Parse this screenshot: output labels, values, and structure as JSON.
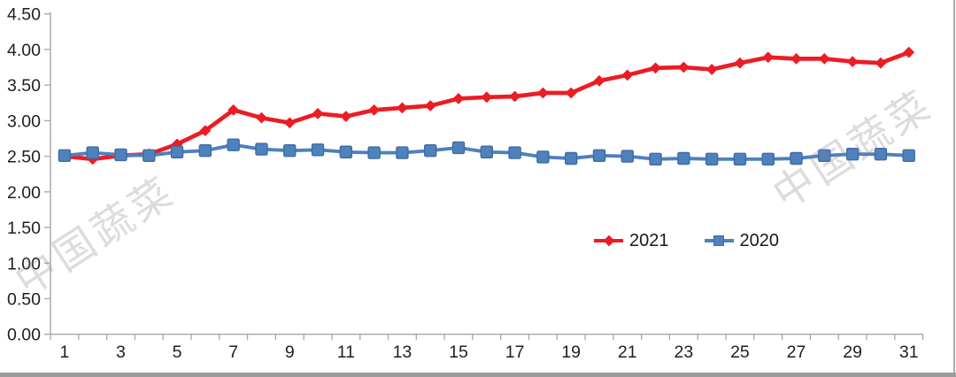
{
  "chart_data": {
    "type": "line",
    "x": [
      1,
      2,
      3,
      4,
      5,
      6,
      7,
      8,
      9,
      10,
      11,
      12,
      13,
      14,
      15,
      16,
      17,
      18,
      19,
      20,
      21,
      22,
      23,
      24,
      25,
      26,
      27,
      28,
      29,
      30,
      31
    ],
    "x_tick_labels": [
      "1",
      "3",
      "5",
      "7",
      "9",
      "11",
      "13",
      "15",
      "17",
      "19",
      "21",
      "23",
      "25",
      "27",
      "29",
      "31"
    ],
    "y_tick_labels": [
      "0.00",
      "0.50",
      "1.00",
      "1.50",
      "2.00",
      "2.50",
      "3.00",
      "3.50",
      "4.00",
      "4.50"
    ],
    "ylim": [
      0,
      4.5
    ],
    "y_step": 0.5,
    "grid": false,
    "legend_position": "inside-bottom-center",
    "title": "",
    "xlabel": "",
    "ylabel": "",
    "series": [
      {
        "name": "2021",
        "color": "#ec1c24",
        "marker": "diamond",
        "values": [
          2.5,
          2.46,
          2.51,
          2.53,
          2.67,
          2.86,
          3.15,
          3.04,
          2.97,
          3.1,
          3.06,
          3.15,
          3.18,
          3.21,
          3.31,
          3.33,
          3.34,
          3.39,
          3.39,
          3.56,
          3.64,
          3.74,
          3.75,
          3.72,
          3.81,
          3.89,
          3.87,
          3.87,
          3.83,
          3.81,
          3.96
        ]
      },
      {
        "name": "2020",
        "color": "#4f81bd",
        "marker": "square",
        "marker_border": "#3e6ca3",
        "values": [
          2.51,
          2.55,
          2.52,
          2.51,
          2.56,
          2.58,
          2.66,
          2.6,
          2.58,
          2.59,
          2.56,
          2.55,
          2.55,
          2.58,
          2.62,
          2.56,
          2.55,
          2.49,
          2.47,
          2.51,
          2.5,
          2.46,
          2.47,
          2.46,
          2.46,
          2.46,
          2.47,
          2.51,
          2.53,
          2.53,
          2.51
        ]
      }
    ]
  },
  "legend": {
    "items": [
      {
        "label": "2021"
      },
      {
        "label": "2020"
      }
    ]
  },
  "watermark": {
    "text": "中国蔬菜"
  },
  "colors": {
    "axis": "#a6a6a6",
    "tick_text": "#1f1f1f",
    "background": "#ffffff",
    "border_right": "#ababab",
    "border_bottom": "#9c9c9c"
  }
}
